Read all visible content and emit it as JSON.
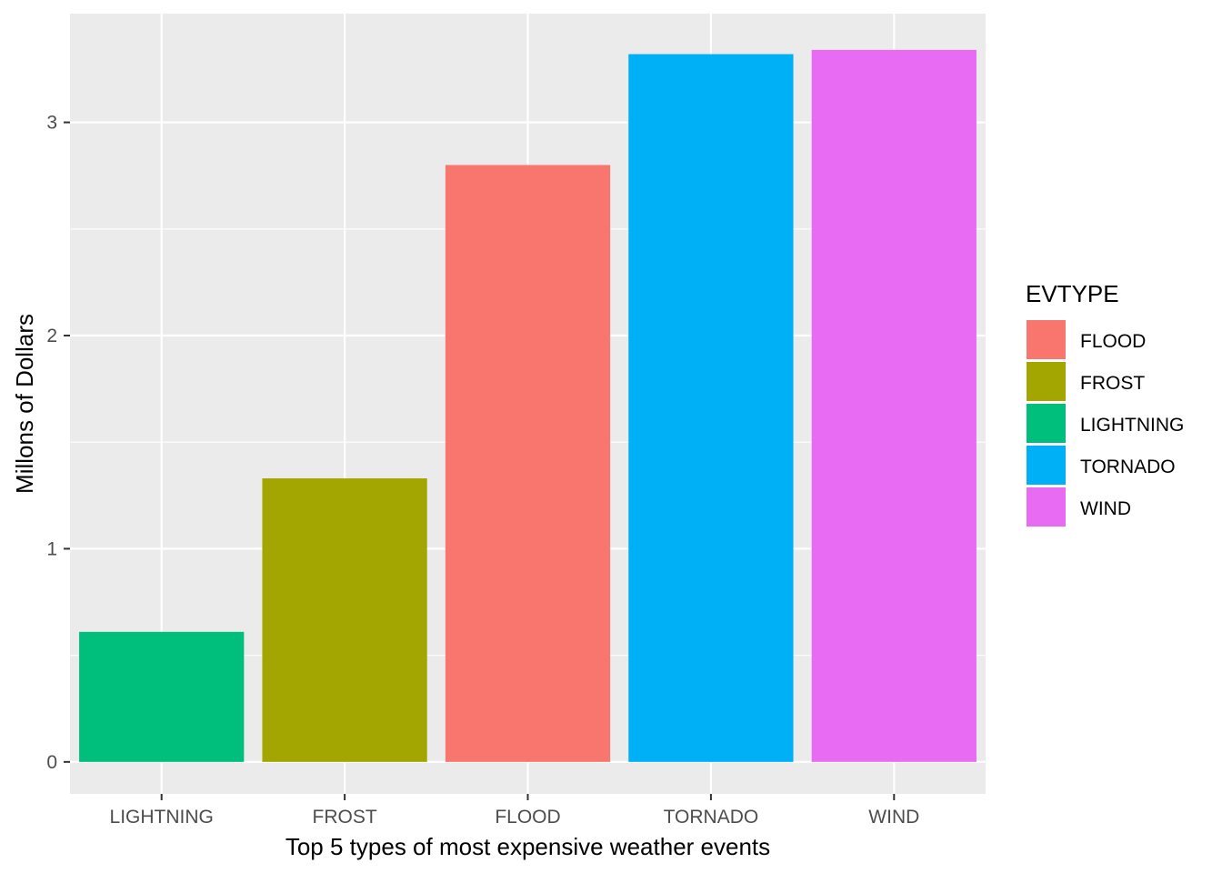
{
  "chart_data": {
    "type": "bar",
    "categories": [
      "LIGHTNING",
      "FROST",
      "FLOOD",
      "TORNADO",
      "WIND"
    ],
    "values": [
      0.61,
      1.33,
      2.8,
      3.32,
      3.34
    ],
    "xlabel": "Top 5 types of most expensive weather events",
    "ylabel": "Millons of Dollars",
    "ylim": [
      -0.15,
      3.51
    ],
    "yticks": [
      0,
      1,
      2,
      3
    ],
    "ytick_labels": [
      "0",
      "1",
      "2",
      "3"
    ],
    "grid": true,
    "legend": {
      "title": "EVTYPE",
      "position": "right",
      "entries": [
        "FLOOD",
        "FROST",
        "LIGHTNING",
        "TORNADO",
        "WIND"
      ]
    },
    "colors": {
      "FLOOD": "#F8766D",
      "FROST": "#A3A500",
      "LIGHTNING": "#00BF7D",
      "TORNADO": "#00B0F6",
      "WIND": "#E76BF3"
    },
    "panel_background": "#EBEBEB",
    "grid_color": "#FFFFFF"
  }
}
